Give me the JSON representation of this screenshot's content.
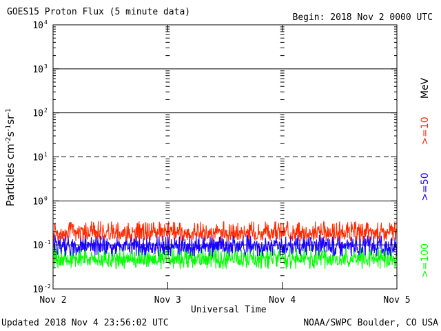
{
  "header": {
    "title": "GOES15 Proton Flux (5 minute data)",
    "begin": "Begin: 2018 Nov 2 0000 UTC"
  },
  "footer": {
    "updated": "Updated 2018 Nov  4 23:56:02 UTC",
    "credit": "NOAA/SWPC Boulder, CO USA"
  },
  "chart_data": {
    "type": "line",
    "title": "GOES15 Proton Flux (5 minute data)",
    "xlabel": "Universal Time",
    "ylabel": "Particles cm-2s-1sr-1",
    "yscale": "log",
    "ylim": [
      0.01,
      10000
    ],
    "xlim": [
      "Nov 2",
      "Nov 5"
    ],
    "x_ticks": [
      "Nov 2",
      "Nov 3",
      "Nov 4",
      "Nov 5"
    ],
    "y_ticks": [
      {
        "base": "10",
        "exp": "-2"
      },
      {
        "base": "10",
        "exp": "-1"
      },
      {
        "base": "10",
        "exp": "0"
      },
      {
        "base": "10",
        "exp": "1"
      },
      {
        "base": "10",
        "exp": "2"
      },
      {
        "base": "10",
        "exp": "3"
      },
      {
        "base": "10",
        "exp": "4"
      }
    ],
    "unit_label": "MeV",
    "reference_lines": [
      {
        "value": 0.1,
        "style": "solid"
      },
      {
        "value": 1,
        "style": "solid"
      },
      {
        "value": 10,
        "style": "dashed"
      },
      {
        "value": 100,
        "style": "solid"
      },
      {
        "value": 1000,
        "style": "solid"
      }
    ],
    "grid": false,
    "legend_placement": "right",
    "series": [
      {
        "name": ">=10",
        "color": "#ff2a00",
        "range": [
          0.12,
          0.35
        ],
        "typical": 0.18
      },
      {
        "name": ">=50",
        "color": "#1a00ff",
        "range": [
          0.055,
          0.17
        ],
        "typical": 0.09
      },
      {
        "name": ">=100",
        "color": "#00ff00",
        "range": [
          0.028,
          0.09
        ],
        "typical": 0.045
      }
    ]
  }
}
